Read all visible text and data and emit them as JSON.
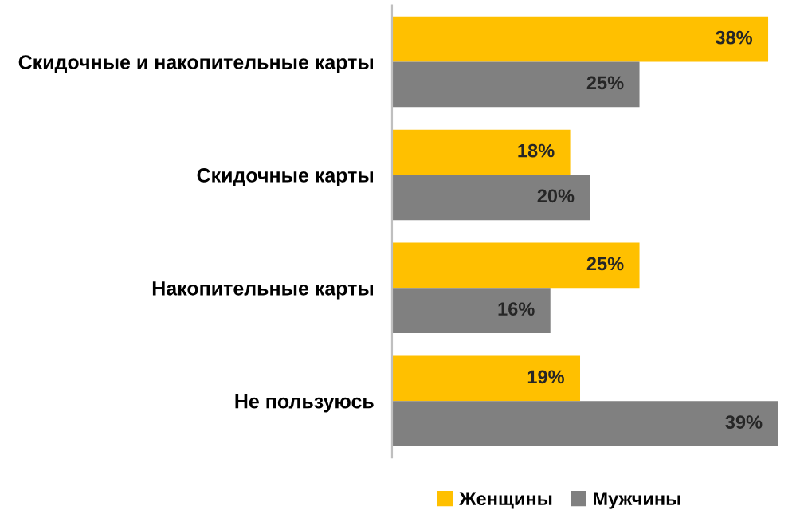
{
  "chart_data": {
    "type": "bar",
    "orientation": "horizontal",
    "categories": [
      "Скидочные и накопительные карты",
      "Скидочные карты",
      "Накопительные карты",
      "Не пользуюсь"
    ],
    "series": [
      {
        "name": "Женщины",
        "color": "#ffc000",
        "values": [
          38,
          18,
          25,
          19
        ],
        "value_labels": [
          "38%",
          "18%",
          "25%",
          "19%"
        ]
      },
      {
        "name": "Мужчины",
        "color": "#808080",
        "values": [
          25,
          20,
          16,
          39
        ],
        "value_labels": [
          "25%",
          "20%",
          "16%",
          "39%"
        ]
      }
    ],
    "legend": "bottom",
    "grid": false
  }
}
